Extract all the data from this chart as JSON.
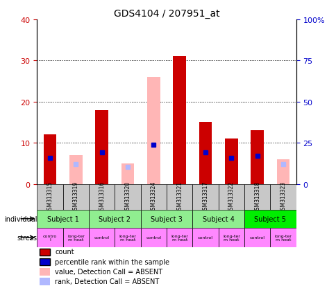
{
  "title": "GDS4104 / 207951_at",
  "samples": [
    "GSM313315",
    "GSM313319",
    "GSM313316",
    "GSM313320",
    "GSM313324",
    "GSM313321",
    "GSM313317",
    "GSM313322",
    "GSM313318",
    "GSM313323"
  ],
  "count_values": [
    12,
    null,
    18,
    null,
    null,
    31,
    15,
    11,
    13,
    null
  ],
  "count_absent": [
    null,
    7,
    null,
    5,
    26,
    null,
    null,
    null,
    null,
    6
  ],
  "percentile_present": [
    16,
    null,
    19,
    null,
    24,
    null,
    19,
    16,
    17,
    null
  ],
  "percentile_absent": [
    null,
    12,
    null,
    10.5,
    null,
    null,
    null,
    null,
    null,
    12
  ],
  "subjects": [
    {
      "label": "Subject 1",
      "start": 0,
      "end": 2,
      "color": "#90ee90"
    },
    {
      "label": "Subject 2",
      "start": 2,
      "end": 4,
      "color": "#90ee90"
    },
    {
      "label": "Subject 3",
      "start": 4,
      "end": 6,
      "color": "#90ee90"
    },
    {
      "label": "Subject 4",
      "start": 6,
      "end": 8,
      "color": "#90ee90"
    },
    {
      "label": "Subject 5",
      "start": 8,
      "end": 10,
      "color": "#00ee00"
    }
  ],
  "stress_labels": [
    "contro\nl",
    "long-ter\nm heat",
    "control",
    "long-ter\nm heat",
    "control",
    "long-ter\nm heat",
    "control",
    "long-ter\nm heat",
    "control",
    "long-ter\nm heat"
  ],
  "stress_color": "#ff88ff",
  "sample_bg_color": "#c8c8c8",
  "ylim_left": [
    0,
    40
  ],
  "ylim_right": [
    0,
    100
  ],
  "yticks_left": [
    0,
    10,
    20,
    30,
    40
  ],
  "yticks_right": [
    0,
    25,
    50,
    75,
    100
  ],
  "yticklabels_right": [
    "0",
    "25",
    "50",
    "75",
    "100%"
  ],
  "yticklabels_left": [
    "0",
    "10",
    "20",
    "30",
    "40"
  ],
  "count_color": "#cc0000",
  "percentile_color": "#0000cc",
  "absent_bar_color": "#ffb6b6",
  "absent_rank_color": "#b0b8ff",
  "legend_items": [
    {
      "color": "#cc0000",
      "label": "count"
    },
    {
      "color": "#0000cc",
      "label": "percentile rank within the sample"
    },
    {
      "color": "#ffb6b6",
      "label": "value, Detection Call = ABSENT"
    },
    {
      "color": "#b0b8ff",
      "label": "rank, Detection Call = ABSENT"
    }
  ]
}
